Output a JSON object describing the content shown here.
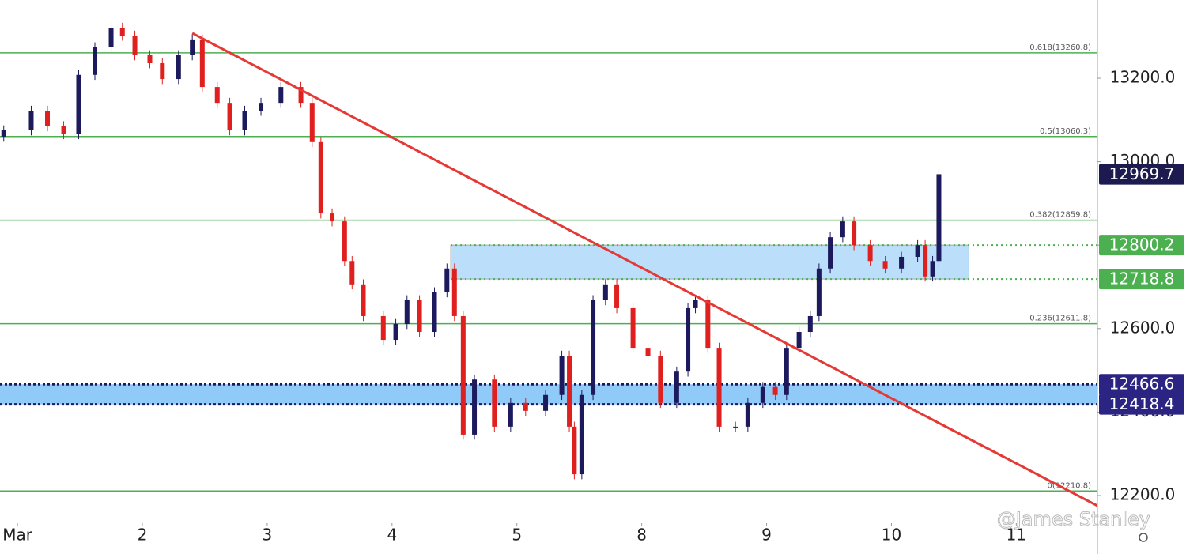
{
  "chart_data": {
    "type": "candlestick",
    "xlim": [
      -0.14,
      8.65
    ],
    "ylim": [
      12137.5,
      13387.5
    ],
    "xticks": [
      {
        "value": 0,
        "label": "Mar"
      },
      {
        "value": 1,
        "label": "2"
      },
      {
        "value": 2,
        "label": "3"
      },
      {
        "value": 3,
        "label": "4"
      },
      {
        "value": 4,
        "label": "5"
      },
      {
        "value": 5,
        "label": "8"
      },
      {
        "value": 6,
        "label": "9"
      },
      {
        "value": 7,
        "label": "10"
      },
      {
        "value": 8,
        "label": "11"
      }
    ],
    "yticks": [
      {
        "value": 12200,
        "label": "12200.0"
      },
      {
        "value": 12400,
        "label": "12400.0"
      },
      {
        "value": 12600,
        "label": "12600.0"
      },
      {
        "value": 12800,
        "label": "12800.0"
      },
      {
        "value": 13000,
        "label": "13000.0"
      },
      {
        "value": 13200,
        "label": "13200.0"
      }
    ],
    "up_color": "#1c1a5c",
    "down_color": "#e0201e",
    "x": [
      -0.11,
      0.11,
      0.24,
      0.37,
      0.49,
      0.62,
      0.75,
      0.84,
      0.94,
      1.06,
      1.16,
      1.29,
      1.4,
      1.48,
      1.6,
      1.7,
      1.82,
      1.95,
      2.11,
      2.27,
      2.36,
      2.43,
      2.52,
      2.62,
      2.68,
      2.77,
      2.93,
      3.03,
      3.12,
      3.22,
      3.34,
      3.44,
      3.5,
      3.57,
      3.66,
      3.82,
      3.95,
      4.07,
      4.23,
      4.36,
      4.42,
      4.46,
      4.52,
      4.61,
      4.71,
      4.8,
      4.93,
      5.05,
      5.15,
      5.28,
      5.37,
      5.43,
      5.53,
      5.62,
      5.75,
      5.85,
      5.97,
      6.07,
      6.16,
      6.26,
      6.35,
      6.42,
      6.51,
      6.61,
      6.7,
      6.83,
      6.95,
      7.08,
      7.21,
      7.27,
      7.33,
      7.38
    ],
    "open": [
      13060,
      13075,
      13122,
      13085,
      13066,
      13208,
      13274,
      13321,
      13302,
      13255,
      13236,
      13198,
      13255,
      13293,
      13179,
      13141,
      13075,
      13122,
      13141,
      13179,
      13141,
      13047,
      12876,
      12857,
      12762,
      12706,
      12630,
      12573,
      12611,
      12668,
      12592,
      12687,
      12744,
      12630,
      12346,
      12478,
      12365,
      12422,
      12403,
      12441,
      12535,
      12365,
      12251,
      12441,
      12668,
      12706,
      12649,
      12554,
      12535,
      12422,
      12497,
      12649,
      12668,
      12554,
      12365,
      12365,
      12422,
      12460,
      12441,
      12554,
      12592,
      12630,
      12744,
      12819,
      12857,
      12800,
      12762,
      12744,
      12772,
      12800,
      12725,
      12762
    ],
    "high": [
      13087,
      13134,
      13134,
      13097,
      13220,
      13286,
      13333,
      13333,
      13314,
      13267,
      13248,
      13267,
      13305,
      13305,
      13191,
      13153,
      13134,
      13153,
      13191,
      13191,
      13153,
      13059,
      12888,
      12869,
      12774,
      12718,
      12642,
      12623,
      12680,
      12680,
      12699,
      12756,
      12756,
      12642,
      12490,
      12490,
      12434,
      12434,
      12453,
      12547,
      12547,
      12377,
      12453,
      12680,
      12718,
      12718,
      12661,
      12566,
      12547,
      12509,
      12661,
      12680,
      12680,
      12566,
      12377,
      12434,
      12472,
      12472,
      12566,
      12604,
      12642,
      12756,
      12831,
      12869,
      12869,
      12812,
      12774,
      12784,
      12812,
      12812,
      12774,
      12982
    ],
    "low": [
      13048,
      13063,
      13073,
      13054,
      13054,
      13196,
      13262,
      13290,
      13243,
      13224,
      13186,
      13186,
      13243,
      13167,
      13129,
      13063,
      13063,
      13110,
      13129,
      13129,
      13035,
      12864,
      12845,
      12750,
      12694,
      12618,
      12561,
      12561,
      12599,
      12580,
      12580,
      12675,
      12618,
      12334,
      12334,
      12353,
      12353,
      12391,
      12391,
      12429,
      12353,
      12239,
      12239,
      12429,
      12656,
      12637,
      12542,
      12523,
      12410,
      12410,
      12485,
      12637,
      12542,
      12353,
      12353,
      12353,
      12410,
      12429,
      12429,
      12542,
      12580,
      12618,
      12732,
      12807,
      12788,
      12750,
      12732,
      12732,
      12760,
      12713,
      12713,
      12750
    ],
    "close": [
      13075,
      13122,
      13085,
      13066,
      13208,
      13274,
      13321,
      13302,
      13255,
      13236,
      13198,
      13255,
      13293,
      13179,
      13141,
      13075,
      13122,
      13141,
      13179,
      13141,
      13047,
      12876,
      12857,
      12762,
      12706,
      12630,
      12573,
      12611,
      12668,
      12592,
      12687,
      12744,
      12630,
      12346,
      12478,
      12365,
      12422,
      12403,
      12441,
      12535,
      12365,
      12251,
      12441,
      12668,
      12706,
      12649,
      12554,
      12535,
      12422,
      12497,
      12649,
      12668,
      12554,
      12365,
      12365,
      12422,
      12460,
      12441,
      12554,
      12592,
      12630,
      12744,
      12819,
      12857,
      12800,
      12762,
      12744,
      12772,
      12800,
      12725,
      12762,
      12970
    ],
    "levels": [
      {
        "label": "0.618(13260.8)",
        "value": 13260.8
      },
      {
        "label": "0.5(13060.3)",
        "value": 13060.3
      },
      {
        "label": "0.382(12859.8)",
        "value": 12859.8
      },
      {
        "label": "0.236(12611.8)",
        "value": 12611.8
      },
      {
        "label": "0(12210.8)",
        "value": 12210.8
      }
    ],
    "level_color": "#4caf50",
    "zones": [
      {
        "low": 12718.8,
        "high": 12800.2,
        "x": [
          3.47,
          7.62
        ],
        "color": "#bbdefb",
        "edge_color": "#4caf50"
      },
      {
        "low": 12418.4,
        "high": 12466.6,
        "color": "#90caf9",
        "edge_color": "#1c1a5c"
      }
    ],
    "trendline": {
      "x": [
        1.4,
        8.65
      ],
      "y": [
        13308,
        12175.4
      ],
      "color": "#e53935"
    },
    "tags": [
      {
        "value": 12969.7,
        "color": "#1c1a4e"
      },
      {
        "value": 12800.2,
        "color": "#4caf50"
      },
      {
        "value": 12718.8,
        "color": "#4caf50"
      },
      {
        "value": 12466.6,
        "color": "#2b2482"
      },
      {
        "value": 12418.4,
        "color": "#2b2482"
      }
    ],
    "watermark": "@James Stanley"
  }
}
